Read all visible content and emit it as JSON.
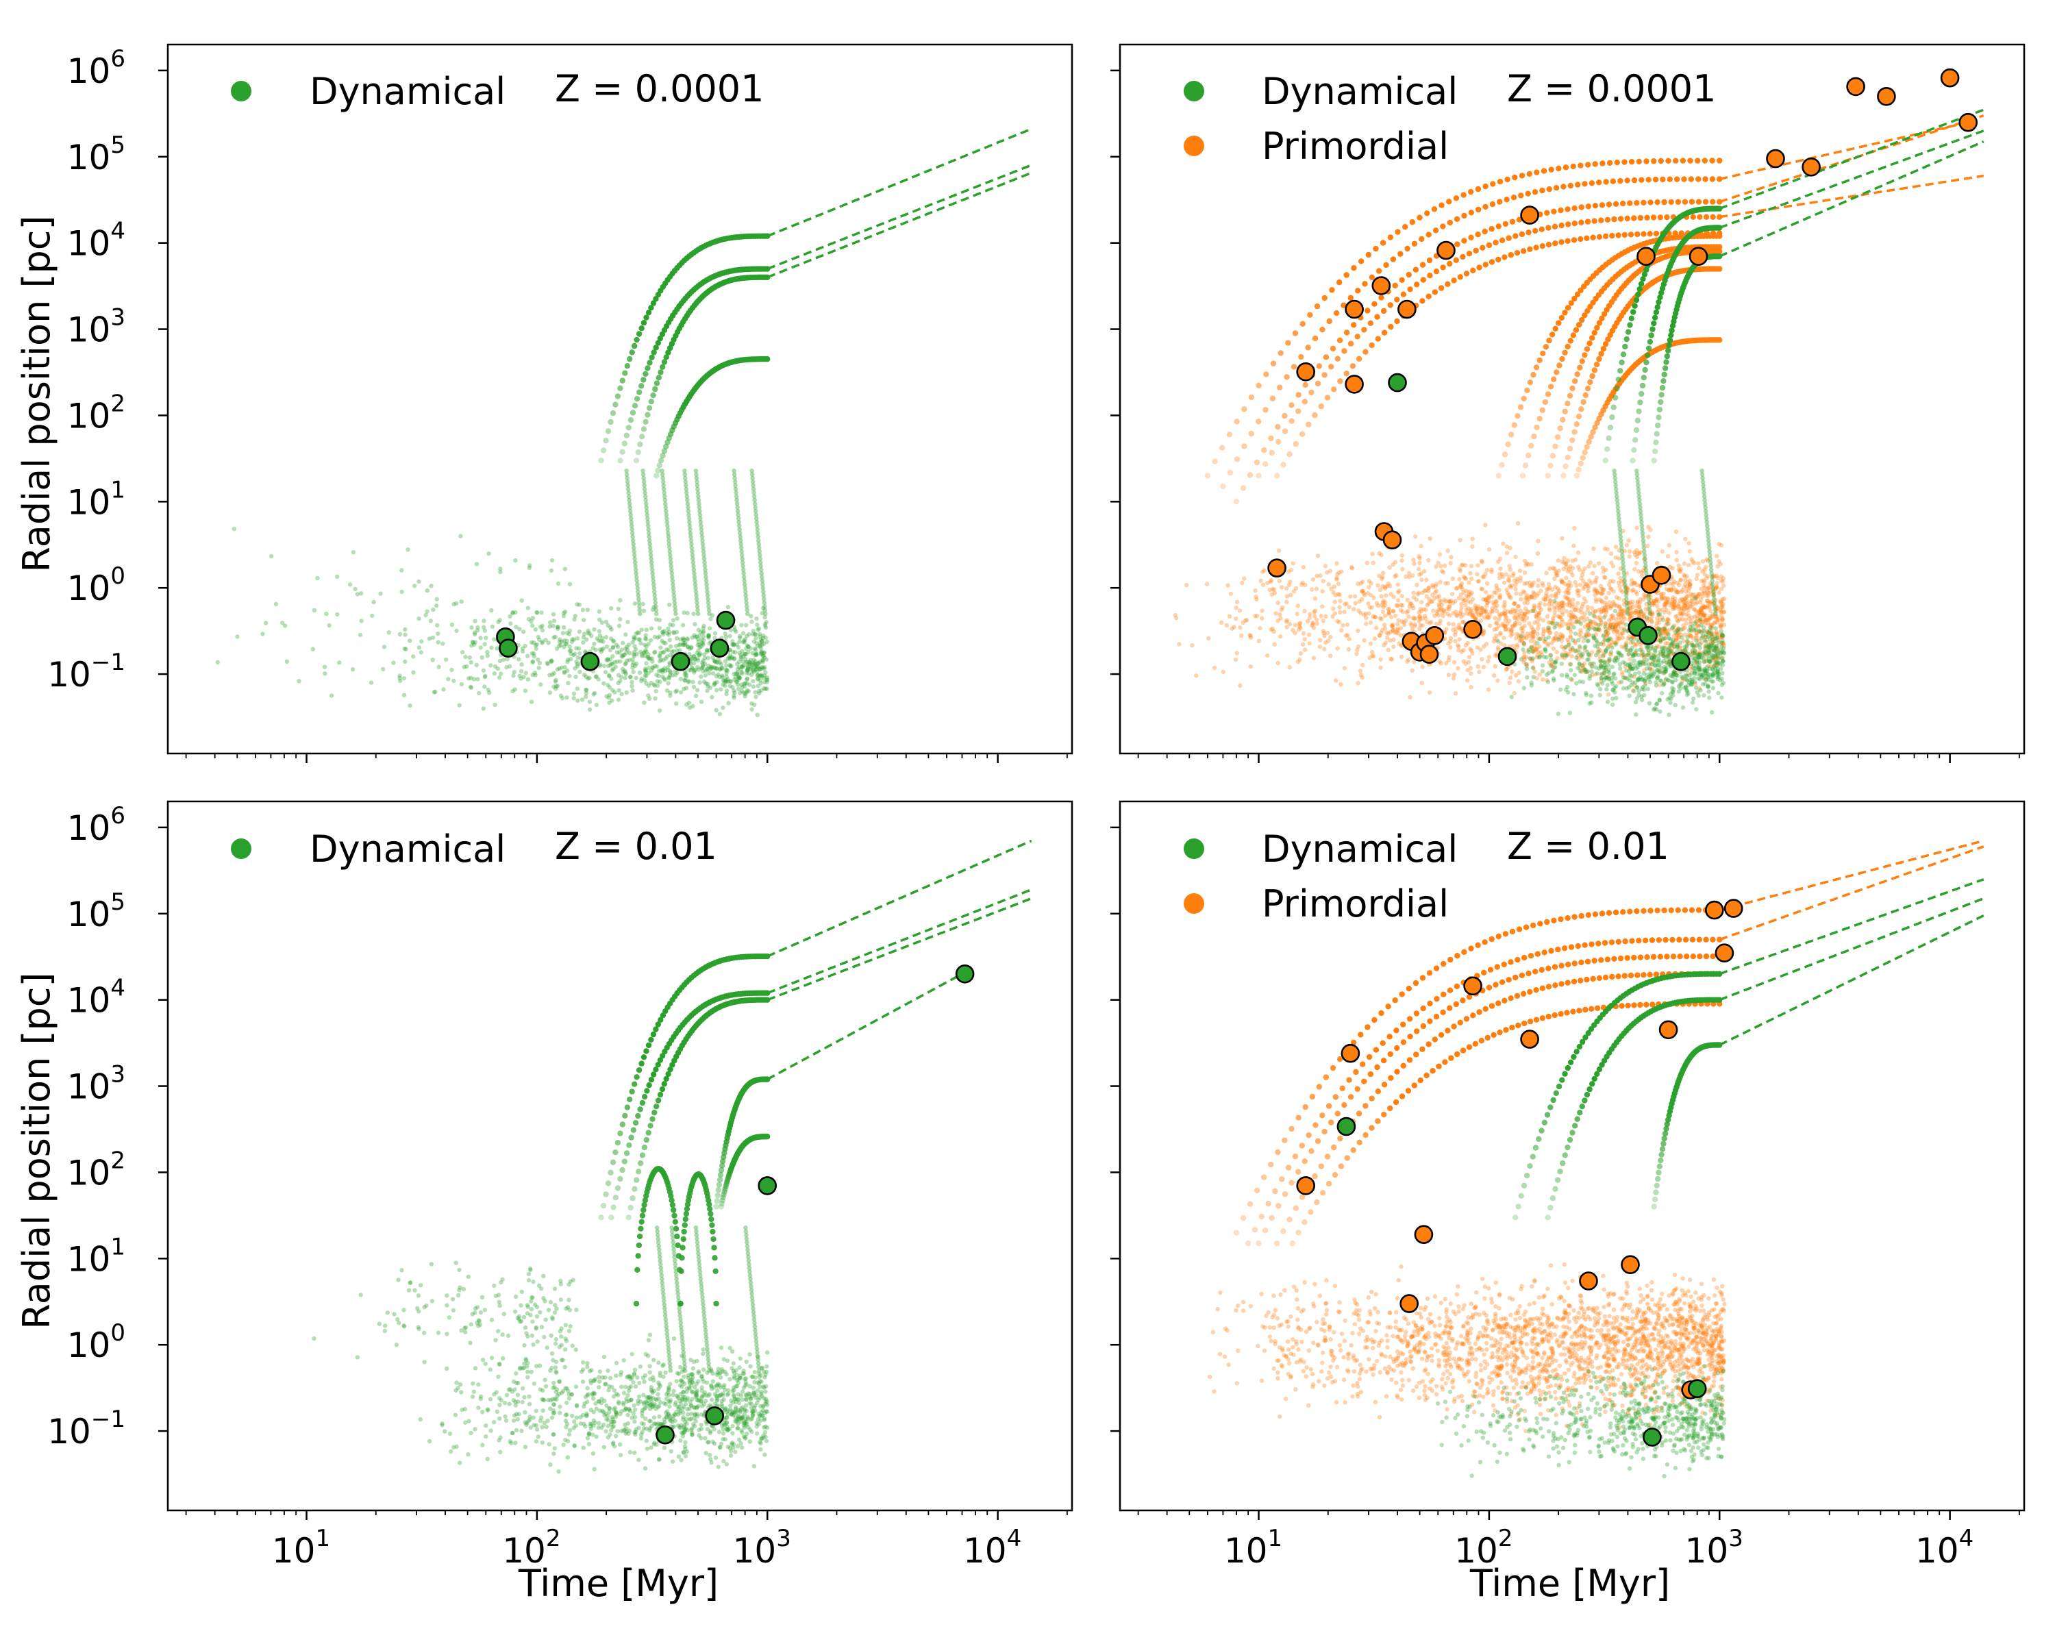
{
  "colors": {
    "dynamical": "#2ca02c",
    "primordial": "#ff7f0e",
    "frame": "#000000"
  },
  "labels": {
    "xlabel": "Time [Myr]",
    "ylabel": "Radial position [pc]"
  },
  "ticks": {
    "x": [
      {
        "value": 10,
        "mant": "10",
        "exp": "1"
      },
      {
        "value": 100,
        "mant": "10",
        "exp": "2"
      },
      {
        "value": 1000,
        "mant": "10",
        "exp": "3"
      },
      {
        "value": 10000,
        "mant": "10",
        "exp": "4"
      }
    ],
    "y": [
      {
        "value": 0.1,
        "mant": "10",
        "exp": "−1"
      },
      {
        "value": 1,
        "mant": "10",
        "exp": "0"
      },
      {
        "value": 10,
        "mant": "10",
        "exp": "1"
      },
      {
        "value": 100,
        "mant": "10",
        "exp": "2"
      },
      {
        "value": 1000,
        "mant": "10",
        "exp": "3"
      },
      {
        "value": 10000,
        "mant": "10",
        "exp": "4"
      },
      {
        "value": 100000,
        "mant": "10",
        "exp": "5"
      },
      {
        "value": 1000000,
        "mant": "10",
        "exp": "6"
      }
    ]
  },
  "panels": [
    {
      "z_label": "Z = 0.0001",
      "legend": [
        "Dynamical"
      ]
    },
    {
      "z_label": "Z = 0.0001",
      "legend": [
        "Dynamical",
        "Primordial"
      ]
    },
    {
      "z_label": "Z = 0.01",
      "legend": [
        "Dynamical"
      ]
    },
    {
      "z_label": "Z = 0.01",
      "legend": [
        "Dynamical",
        "Primordial"
      ]
    }
  ],
  "chart_data": [
    {
      "type": "scatter",
      "scale": "log-log",
      "xlim": [
        2.5,
        21000
      ],
      "ylim": [
        0.012,
        2000000
      ],
      "xlabel": "",
      "ylabel": "Radial position [pc]",
      "title": "Z = 0.0001",
      "legend": [
        "Dynamical"
      ],
      "legend_position": "top-left",
      "cloud": [
        {
          "name": "Dynamical",
          "x_range": [
            20,
            1000
          ],
          "y_range": [
            0.03,
            1.2
          ],
          "count": 1000
        }
      ],
      "sparse": [
        {
          "name": "Dynamical",
          "x_range": [
            3,
            150
          ],
          "y_range": [
            0.02,
            15
          ],
          "count": 120
        }
      ],
      "spikes": [
        {
          "name": "Dynamical",
          "x": [
            280,
            330,
            400,
            500,
            560,
            820,
            980
          ]
        }
      ],
      "tracks": [
        {
          "name": "Dynamical",
          "t_start": 190,
          "t_end": 1000,
          "r_start": 30,
          "r_end": 12000,
          "extend_to": 14000,
          "r_final": 210000
        },
        {
          "name": "Dynamical",
          "t_start": 230,
          "t_end": 1000,
          "r_start": 30,
          "r_end": 5000,
          "extend_to": 14000,
          "r_final": 80000
        },
        {
          "name": "Dynamical",
          "t_start": 270,
          "t_end": 1000,
          "r_start": 30,
          "r_end": 4000,
          "extend_to": 14000,
          "r_final": 65000
        },
        {
          "name": "Dynamical",
          "t_start": 330,
          "t_end": 1000,
          "r_start": 20,
          "r_end": 450,
          "extend_to": null,
          "r_final": null
        }
      ],
      "markers": [
        {
          "name": "Dynamical",
          "points": [
            [
              73,
              0.27
            ],
            [
              75,
              0.2
            ],
            [
              170,
              0.14
            ],
            [
              420,
              0.14
            ],
            [
              620,
              0.2
            ],
            [
              660,
              0.42
            ]
          ]
        }
      ]
    },
    {
      "type": "scatter",
      "scale": "log-log",
      "xlim": [
        2.5,
        21000
      ],
      "ylim": [
        0.012,
        2000000
      ],
      "xlabel": "",
      "ylabel": "",
      "title": "Z = 0.0001",
      "legend": [
        "Dynamical",
        "Primordial"
      ],
      "legend_position": "top-left",
      "cloud": [
        {
          "name": "Primordial",
          "x_range": [
            4,
            1050
          ],
          "y_range": [
            0.05,
            8
          ],
          "count": 2300
        },
        {
          "name": "Dynamical",
          "x_range": [
            100,
            1050
          ],
          "y_range": [
            0.03,
            1
          ],
          "count": 800
        }
      ],
      "sparse": [],
      "spikes": [
        {
          "name": "Dynamical",
          "x": [
            400,
            500,
            960
          ]
        }
      ],
      "tracks": [
        {
          "name": "Primordial",
          "t_start": 6,
          "t_end": 1000,
          "r_start": 20,
          "r_end": 90000,
          "extend_to": null,
          "r_final": null
        },
        {
          "name": "Primordial",
          "t_start": 7,
          "t_end": 1000,
          "r_start": 15,
          "r_end": 55000,
          "extend_to": 12000,
          "r_final": 250000
        },
        {
          "name": "Primordial",
          "t_start": 8,
          "t_end": 1000,
          "r_start": 10,
          "r_end": 30000,
          "extend_to": 14000,
          "r_final": 300000
        },
        {
          "name": "Primordial",
          "t_start": 10,
          "t_end": 1000,
          "r_start": 20,
          "r_end": 20000,
          "extend_to": 14000,
          "r_final": 60000
        },
        {
          "name": "Primordial",
          "t_start": 12,
          "t_end": 1000,
          "r_start": 20,
          "r_end": 13000,
          "extend_to": null,
          "r_final": null
        },
        {
          "name": "Primordial",
          "t_start": 110,
          "t_end": 1000,
          "r_start": 20,
          "r_end": 12000,
          "extend_to": null,
          "r_final": null
        },
        {
          "name": "Primordial",
          "t_start": 140,
          "t_end": 1000,
          "r_start": 20,
          "r_end": 9000,
          "extend_to": null,
          "r_final": null
        },
        {
          "name": "Primordial",
          "t_start": 180,
          "t_end": 1000,
          "r_start": 20,
          "r_end": 8000,
          "extend_to": null,
          "r_final": null
        },
        {
          "name": "Primordial",
          "t_start": 210,
          "t_end": 1000,
          "r_start": 20,
          "r_end": 5000,
          "extend_to": null,
          "r_final": null
        },
        {
          "name": "Primordial",
          "t_start": 240,
          "t_end": 1000,
          "r_start": 20,
          "r_end": 750,
          "extend_to": null,
          "r_final": null
        },
        {
          "name": "Dynamical",
          "t_start": 320,
          "t_end": 1000,
          "r_start": 30,
          "r_end": 25000,
          "extend_to": 14000,
          "r_final": 350000
        },
        {
          "name": "Dynamical",
          "t_start": 420,
          "t_end": 1000,
          "r_start": 30,
          "r_end": 15000,
          "extend_to": 14000,
          "r_final": 200000
        },
        {
          "name": "Dynamical",
          "t_start": 520,
          "t_end": 1000,
          "r_start": 30,
          "r_end": 7000,
          "extend_to": 14000,
          "r_final": 150000
        }
      ],
      "markers": [
        {
          "name": "Primordial",
          "points": [
            [
              16,
              320
            ],
            [
              26,
              1700
            ],
            [
              26,
              230
            ],
            [
              34,
              3200
            ],
            [
              44,
              1700
            ],
            [
              65,
              8200
            ],
            [
              150,
              21000
            ],
            [
              480,
              7000
            ],
            [
              810,
              7000
            ],
            [
              1750,
              95000
            ],
            [
              2500,
              76000
            ],
            [
              3900,
              650000
            ],
            [
              5300,
              500000
            ],
            [
              10000,
              820000
            ],
            [
              12000,
              250000
            ],
            [
              12,
              1.7
            ],
            [
              35,
              4.5
            ],
            [
              38,
              3.6
            ],
            [
              46,
              0.24
            ],
            [
              50,
              0.18
            ],
            [
              53,
              0.23
            ],
            [
              55,
              0.17
            ],
            [
              58,
              0.28
            ],
            [
              85,
              0.33
            ],
            [
              500,
              1.1
            ],
            [
              560,
              1.4
            ]
          ]
        },
        {
          "name": "Dynamical",
          "points": [
            [
              40,
              240
            ],
            [
              120,
              0.16
            ],
            [
              440,
              0.35
            ],
            [
              490,
              0.28
            ],
            [
              680,
              0.14
            ]
          ]
        }
      ]
    },
    {
      "type": "scatter",
      "scale": "log-log",
      "xlim": [
        2.5,
        21000
      ],
      "ylim": [
        0.012,
        2000000
      ],
      "xlabel": "Time [Myr]",
      "ylabel": "Radial position [pc]",
      "title": "Z = 0.01",
      "legend": [
        "Dynamical"
      ],
      "legend_position": "top-left",
      "cloud": [
        {
          "name": "Dynamical",
          "x_range": [
            30,
            1000
          ],
          "y_range": [
            0.03,
            2
          ],
          "count": 1100
        }
      ],
      "sparse": [
        {
          "name": "Dynamical",
          "x_range": [
            10,
            150
          ],
          "y_range": [
            0.5,
            18
          ],
          "count": 160
        }
      ],
      "spikes": [
        {
          "name": "Dynamical",
          "x": [
            380,
            440,
            560,
            920
          ]
        }
      ],
      "tracks": [
        {
          "name": "Dynamical",
          "t_start": 190,
          "t_end": 1000,
          "r_start": 30,
          "r_end": 32000,
          "extend_to": 14000,
          "r_final": 700000
        },
        {
          "name": "Dynamical",
          "t_start": 210,
          "t_end": 1000,
          "r_start": 30,
          "r_end": 12000,
          "extend_to": 14000,
          "r_final": 190000
        },
        {
          "name": "Dynamical",
          "t_start": 250,
          "t_end": 1000,
          "r_start": 30,
          "r_end": 10000,
          "extend_to": 14000,
          "r_final": 150000
        },
        {
          "name": "Dynamical",
          "t_start": 600,
          "t_end": 1000,
          "r_start": 40,
          "r_end": 1200,
          "extend_to": 7000,
          "r_final": 20000
        },
        {
          "name": "Dynamical",
          "t_start": 630,
          "t_end": 1000,
          "r_start": 40,
          "r_end": 260,
          "extend_to": null,
          "r_final": null
        }
      ],
      "arches": [
        {
          "name": "Dynamical",
          "t_start": 270,
          "t_end": 420,
          "peak": 110
        },
        {
          "name": "Dynamical",
          "t_start": 420,
          "t_end": 600,
          "peak": 95
        }
      ],
      "markers": [
        {
          "name": "Dynamical",
          "points": [
            [
              1000,
              70
            ],
            [
              360,
              0.09
            ],
            [
              590,
              0.15
            ],
            [
              7200,
              20000
            ]
          ]
        }
      ]
    },
    {
      "type": "scatter",
      "scale": "log-log",
      "xlim": [
        2.5,
        21000
      ],
      "ylim": [
        0.012,
        2000000
      ],
      "xlabel": "Time [Myr]",
      "ylabel": "",
      "title": "Z = 0.01",
      "legend": [
        "Dynamical",
        "Primordial"
      ],
      "legend_position": "top-left",
      "cloud": [
        {
          "name": "Primordial",
          "x_range": [
            5,
            1050
          ],
          "y_range": [
            0.1,
            15
          ],
          "count": 2000
        },
        {
          "name": "Dynamical",
          "x_range": [
            50,
            1050
          ],
          "y_range": [
            0.03,
            1
          ],
          "count": 600
        }
      ],
      "sparse": [],
      "spikes": [],
      "tracks": [
        {
          "name": "Primordial",
          "t_start": 8,
          "t_end": 1000,
          "r_start": 20,
          "r_end": 110000,
          "extend_to": 14000,
          "r_final": 700000
        },
        {
          "name": "Primordial",
          "t_start": 9,
          "t_end": 1000,
          "r_start": 15,
          "r_end": 50000,
          "extend_to": 14000,
          "r_final": 600000
        },
        {
          "name": "Primordial",
          "t_start": 10,
          "t_end": 1000,
          "r_start": 15,
          "r_end": 32000,
          "extend_to": null,
          "r_final": null
        },
        {
          "name": "Primordial",
          "t_start": 12,
          "t_end": 1000,
          "r_start": 15,
          "r_end": 20000,
          "extend_to": null,
          "r_final": null
        },
        {
          "name": "Primordial",
          "t_start": 14,
          "t_end": 1000,
          "r_start": 15,
          "r_end": 9000,
          "extend_to": null,
          "r_final": null
        },
        {
          "name": "Dynamical",
          "t_start": 130,
          "t_end": 1000,
          "r_start": 30,
          "r_end": 20000,
          "extend_to": 14000,
          "r_final": 250000
        },
        {
          "name": "Dynamical",
          "t_start": 180,
          "t_end": 1000,
          "r_start": 30,
          "r_end": 10000,
          "extend_to": 14000,
          "r_final": 150000
        },
        {
          "name": "Dynamical",
          "t_start": 520,
          "t_end": 1000,
          "r_start": 40,
          "r_end": 3000,
          "extend_to": 14000,
          "r_final": 95000
        }
      ],
      "markers": [
        {
          "name": "Primordial",
          "points": [
            [
              16,
              70
            ],
            [
              25,
              2400
            ],
            [
              85,
              14500
            ],
            [
              150,
              3500
            ],
            [
              600,
              4500
            ],
            [
              950,
              110000
            ],
            [
              1150,
              115000
            ],
            [
              1050,
              35000
            ],
            [
              52,
              19
            ],
            [
              45,
              3
            ],
            [
              270,
              5.5
            ],
            [
              410,
              8.5
            ],
            [
              750,
              0.3
            ]
          ]
        },
        {
          "name": "Dynamical",
          "points": [
            [
              24,
              340
            ],
            [
              510,
              0.085
            ],
            [
              800,
              0.31
            ]
          ]
        }
      ]
    }
  ]
}
